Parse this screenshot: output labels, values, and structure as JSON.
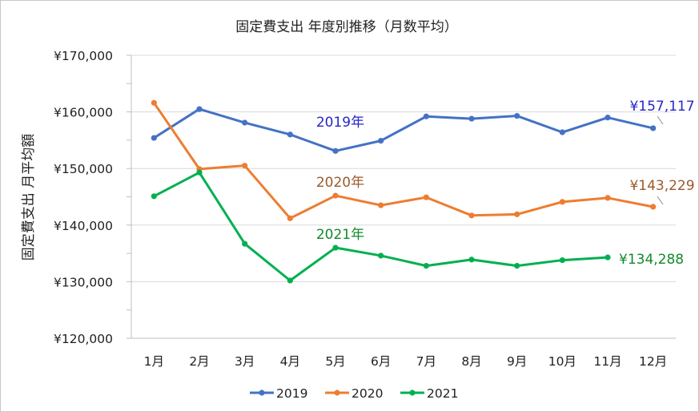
{
  "chart_data": {
    "type": "line",
    "title": "固定費支出 年度別推移（月数平均）",
    "ylabel": "固定費支出 月平均額",
    "xlabel": "",
    "categories": [
      "1月",
      "2月",
      "3月",
      "4月",
      "5月",
      "6月",
      "7月",
      "8月",
      "9月",
      "10月",
      "11月",
      "12月"
    ],
    "ylim": [
      120000,
      170000
    ],
    "yticks": [
      120000,
      130000,
      140000,
      150000,
      160000,
      170000
    ],
    "ytick_labels": [
      "¥120,000",
      "¥130,000",
      "¥140,000",
      "¥150,000",
      "¥160,000",
      "¥170,000"
    ],
    "grid": true,
    "legend_position": "bottom",
    "series": [
      {
        "name": "2019",
        "color": "#4472c4",
        "values": [
          155400,
          160500,
          158100,
          156000,
          153100,
          154900,
          159200,
          158800,
          159300,
          156400,
          159000,
          157117
        ],
        "series_label": "2019年",
        "end_label": "¥157,117"
      },
      {
        "name": "2020",
        "color": "#ed7d31",
        "values": [
          161600,
          149900,
          150500,
          141200,
          145200,
          143500,
          144900,
          141700,
          141900,
          144100,
          144800,
          143229
        ],
        "series_label": "2020年",
        "end_label": "¥143,229"
      },
      {
        "name": "2021",
        "color": "#00b050",
        "values": [
          145100,
          149300,
          136700,
          130200,
          136000,
          134600,
          132800,
          133900,
          132800,
          133800,
          134288,
          null
        ],
        "series_label": "2021年",
        "end_label": "¥134,288"
      }
    ],
    "annotation_colors": {
      "2019": "#2626c8",
      "2020": "#9c5a2c",
      "2021": "#128a2a"
    }
  }
}
